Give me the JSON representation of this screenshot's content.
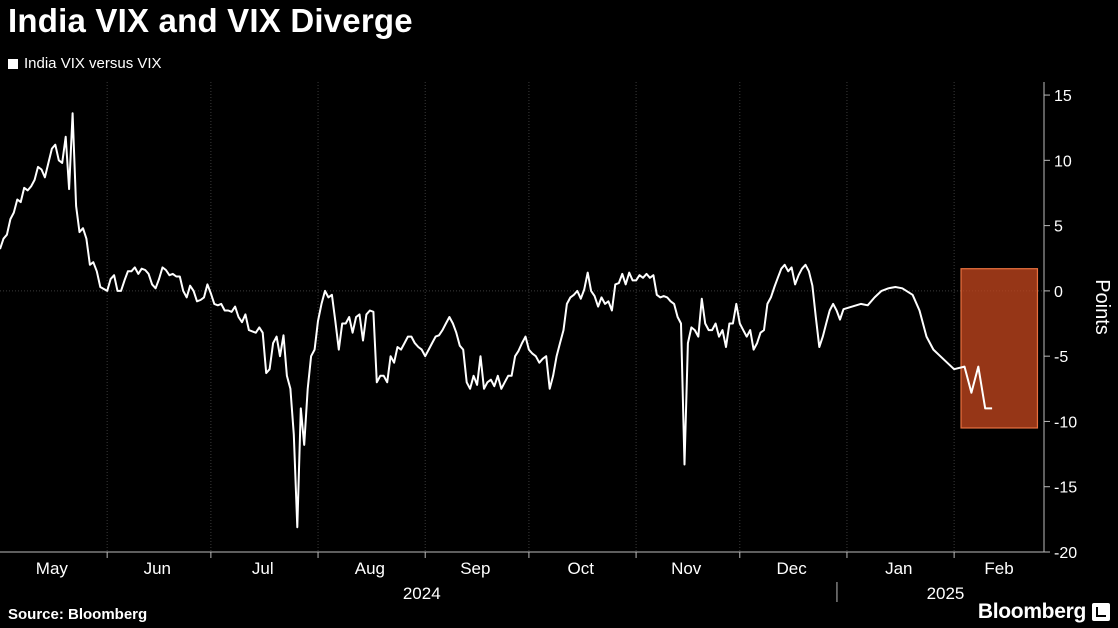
{
  "chart_data": {
    "type": "line",
    "title": "India VIX and VIX Diverge",
    "legend": "top-left",
    "ylabel": "Points",
    "ylim": [
      -20,
      16
    ],
    "yticks": [
      15,
      10,
      5,
      0,
      -5,
      -10,
      -15,
      -20
    ],
    "xlim": [
      "2024-05-01",
      "2025-02-27"
    ],
    "months": [
      {
        "label": "May",
        "start": "2024-05-01",
        "end": "2024-05-31"
      },
      {
        "label": "Jun",
        "start": "2024-06-01",
        "end": "2024-06-30"
      },
      {
        "label": "Jul",
        "start": "2024-07-01",
        "end": "2024-07-31"
      },
      {
        "label": "Aug",
        "start": "2024-08-01",
        "end": "2024-08-31"
      },
      {
        "label": "Sep",
        "start": "2024-09-01",
        "end": "2024-09-30"
      },
      {
        "label": "Oct",
        "start": "2024-10-01",
        "end": "2024-10-31"
      },
      {
        "label": "Nov",
        "start": "2024-11-01",
        "end": "2024-11-30"
      },
      {
        "label": "Dec",
        "start": "2024-12-01",
        "end": "2024-12-31"
      },
      {
        "label": "Jan",
        "start": "2025-01-01",
        "end": "2025-01-31"
      },
      {
        "label": "Feb",
        "start": "2025-02-01",
        "end": "2025-02-28"
      }
    ],
    "years": [
      {
        "label": "2024",
        "start": "2024-05-01",
        "end": "2024-12-31"
      },
      {
        "label": "2025",
        "start": "2025-01-01",
        "end": "2025-02-27"
      }
    ],
    "highlight": {
      "x": [
        "2025-02-03",
        "2025-02-28"
      ],
      "y": [
        -10.5,
        1.7
      ],
      "color": "#c0451e"
    },
    "series": [
      {
        "name": "India VIX versus VIX",
        "color": "#ffffff",
        "points": [
          [
            "2024-05-01",
            3.2
          ],
          [
            "2024-05-02",
            4.0
          ],
          [
            "2024-05-03",
            4.3
          ],
          [
            "2024-05-04",
            5.5
          ],
          [
            "2024-05-05",
            6.0
          ],
          [
            "2024-05-06",
            7.0
          ],
          [
            "2024-05-07",
            6.8
          ],
          [
            "2024-05-08",
            7.9
          ],
          [
            "2024-05-09",
            7.7
          ],
          [
            "2024-05-10",
            8.0
          ],
          [
            "2024-05-11",
            8.5
          ],
          [
            "2024-05-12",
            9.5
          ],
          [
            "2024-05-13",
            9.3
          ],
          [
            "2024-05-14",
            8.7
          ],
          [
            "2024-05-15",
            9.8
          ],
          [
            "2024-05-16",
            10.9
          ],
          [
            "2024-05-17",
            11.2
          ],
          [
            "2024-05-18",
            10.0
          ],
          [
            "2024-05-19",
            9.8
          ],
          [
            "2024-05-20",
            11.8
          ],
          [
            "2024-05-21",
            7.8
          ],
          [
            "2024-05-22",
            13.6
          ],
          [
            "2024-05-23",
            6.5
          ],
          [
            "2024-05-24",
            4.5
          ],
          [
            "2024-05-25",
            4.8
          ],
          [
            "2024-05-26",
            4.0
          ],
          [
            "2024-05-27",
            2.0
          ],
          [
            "2024-05-28",
            2.2
          ],
          [
            "2024-05-29",
            1.5
          ],
          [
            "2024-05-30",
            0.3
          ],
          [
            "2024-06-01",
            0.0
          ],
          [
            "2024-06-02",
            0.9
          ],
          [
            "2024-06-03",
            1.2
          ],
          [
            "2024-06-04",
            0.0
          ],
          [
            "2024-06-05",
            0.0
          ],
          [
            "2024-06-06",
            0.8
          ],
          [
            "2024-06-07",
            1.5
          ],
          [
            "2024-06-08",
            1.5
          ],
          [
            "2024-06-09",
            1.8
          ],
          [
            "2024-06-10",
            1.3
          ],
          [
            "2024-06-11",
            1.7
          ],
          [
            "2024-06-12",
            1.6
          ],
          [
            "2024-06-13",
            1.3
          ],
          [
            "2024-06-14",
            0.5
          ],
          [
            "2024-06-15",
            0.2
          ],
          [
            "2024-06-16",
            0.9
          ],
          [
            "2024-06-17",
            1.8
          ],
          [
            "2024-06-18",
            1.6
          ],
          [
            "2024-06-19",
            1.2
          ],
          [
            "2024-06-20",
            1.3
          ],
          [
            "2024-06-21",
            1.1
          ],
          [
            "2024-06-22",
            1.1
          ],
          [
            "2024-06-23",
            0.0
          ],
          [
            "2024-06-24",
            -0.5
          ],
          [
            "2024-06-25",
            0.4
          ],
          [
            "2024-06-26",
            0.0
          ],
          [
            "2024-06-27",
            -0.8
          ],
          [
            "2024-06-28",
            -0.7
          ],
          [
            "2024-06-29",
            -0.5
          ],
          [
            "2024-06-30",
            0.5
          ],
          [
            "2024-07-01",
            -0.2
          ],
          [
            "2024-07-02",
            -1.0
          ],
          [
            "2024-07-03",
            -1.1
          ],
          [
            "2024-07-04",
            -1.0
          ],
          [
            "2024-07-05",
            -1.5
          ],
          [
            "2024-07-06",
            -1.5
          ],
          [
            "2024-07-07",
            -1.6
          ],
          [
            "2024-07-08",
            -1.2
          ],
          [
            "2024-07-09",
            -2.0
          ],
          [
            "2024-07-10",
            -2.4
          ],
          [
            "2024-07-11",
            -1.8
          ],
          [
            "2024-07-12",
            -3.0
          ],
          [
            "2024-07-13",
            -3.1
          ],
          [
            "2024-07-14",
            -3.2
          ],
          [
            "2024-07-15",
            -2.8
          ],
          [
            "2024-07-16",
            -3.2
          ],
          [
            "2024-07-17",
            -6.3
          ],
          [
            "2024-07-18",
            -6.0
          ],
          [
            "2024-07-19",
            -4.0
          ],
          [
            "2024-07-20",
            -3.5
          ],
          [
            "2024-07-21",
            -5.0
          ],
          [
            "2024-07-22",
            -3.4
          ],
          [
            "2024-07-23",
            -6.5
          ],
          [
            "2024-07-24",
            -7.5
          ],
          [
            "2024-07-25",
            -11.0
          ],
          [
            "2024-07-26",
            -18.1
          ],
          [
            "2024-07-27",
            -9.0
          ],
          [
            "2024-07-28",
            -11.8
          ],
          [
            "2024-07-29",
            -7.5
          ],
          [
            "2024-07-30",
            -5.0
          ],
          [
            "2024-07-31",
            -4.5
          ],
          [
            "2024-08-01",
            -2.3
          ],
          [
            "2024-08-02",
            -1.0
          ],
          [
            "2024-08-03",
            0.0
          ],
          [
            "2024-08-04",
            -0.5
          ],
          [
            "2024-08-05",
            -0.3
          ],
          [
            "2024-08-06",
            -2.3
          ],
          [
            "2024-08-07",
            -4.5
          ],
          [
            "2024-08-08",
            -2.5
          ],
          [
            "2024-08-09",
            -2.5
          ],
          [
            "2024-08-10",
            -2.0
          ],
          [
            "2024-08-11",
            -3.2
          ],
          [
            "2024-08-12",
            -2.0
          ],
          [
            "2024-08-13",
            -1.8
          ],
          [
            "2024-08-14",
            -3.8
          ],
          [
            "2024-08-15",
            -1.8
          ],
          [
            "2024-08-16",
            -1.5
          ],
          [
            "2024-08-17",
            -1.6
          ],
          [
            "2024-08-18",
            -7.0
          ],
          [
            "2024-08-19",
            -6.5
          ],
          [
            "2024-08-20",
            -6.5
          ],
          [
            "2024-08-21",
            -7.0
          ],
          [
            "2024-08-22",
            -5.0
          ],
          [
            "2024-08-23",
            -5.5
          ],
          [
            "2024-08-24",
            -4.3
          ],
          [
            "2024-08-25",
            -4.5
          ],
          [
            "2024-08-26",
            -4.0
          ],
          [
            "2024-08-27",
            -3.5
          ],
          [
            "2024-08-28",
            -3.5
          ],
          [
            "2024-08-29",
            -4.0
          ],
          [
            "2024-08-30",
            -4.3
          ],
          [
            "2024-08-31",
            -4.5
          ],
          [
            "2024-09-01",
            -5.0
          ],
          [
            "2024-09-02",
            -4.5
          ],
          [
            "2024-09-03",
            -4.0
          ],
          [
            "2024-09-04",
            -3.5
          ],
          [
            "2024-09-05",
            -3.4
          ],
          [
            "2024-09-06",
            -3.0
          ],
          [
            "2024-09-07",
            -2.5
          ],
          [
            "2024-09-08",
            -2.0
          ],
          [
            "2024-09-09",
            -2.5
          ],
          [
            "2024-09-10",
            -3.2
          ],
          [
            "2024-09-11",
            -4.2
          ],
          [
            "2024-09-12",
            -4.5
          ],
          [
            "2024-09-13",
            -7.0
          ],
          [
            "2024-09-14",
            -7.5
          ],
          [
            "2024-09-15",
            -6.5
          ],
          [
            "2024-09-16",
            -7.2
          ],
          [
            "2024-09-17",
            -5.0
          ],
          [
            "2024-09-18",
            -7.5
          ],
          [
            "2024-09-19",
            -7.0
          ],
          [
            "2024-09-20",
            -6.8
          ],
          [
            "2024-09-21",
            -7.3
          ],
          [
            "2024-09-22",
            -6.5
          ],
          [
            "2024-09-23",
            -7.5
          ],
          [
            "2024-09-24",
            -7.0
          ],
          [
            "2024-09-25",
            -6.5
          ],
          [
            "2024-09-26",
            -6.5
          ],
          [
            "2024-09-27",
            -5.0
          ],
          [
            "2024-09-28",
            -4.6
          ],
          [
            "2024-09-29",
            -4.0
          ],
          [
            "2024-09-30",
            -3.5
          ],
          [
            "2024-10-01",
            -4.5
          ],
          [
            "2024-10-02",
            -4.8
          ],
          [
            "2024-10-03",
            -5.0
          ],
          [
            "2024-10-04",
            -5.5
          ],
          [
            "2024-10-05",
            -5.2
          ],
          [
            "2024-10-06",
            -5.0
          ],
          [
            "2024-10-07",
            -7.5
          ],
          [
            "2024-10-08",
            -6.5
          ],
          [
            "2024-10-09",
            -5.0
          ],
          [
            "2024-10-10",
            -4.0
          ],
          [
            "2024-10-11",
            -3.0
          ],
          [
            "2024-10-12",
            -1.0
          ],
          [
            "2024-10-13",
            -0.5
          ],
          [
            "2024-10-14",
            -0.3
          ],
          [
            "2024-10-15",
            0.0
          ],
          [
            "2024-10-16",
            -0.6
          ],
          [
            "2024-10-17",
            0.1
          ],
          [
            "2024-10-18",
            1.4
          ],
          [
            "2024-10-19",
            0.0
          ],
          [
            "2024-10-20",
            -0.4
          ],
          [
            "2024-10-21",
            -1.2
          ],
          [
            "2024-10-22",
            -0.5
          ],
          [
            "2024-10-23",
            -1.0
          ],
          [
            "2024-10-24",
            -0.8
          ],
          [
            "2024-10-25",
            -1.5
          ],
          [
            "2024-10-26",
            0.5
          ],
          [
            "2024-10-27",
            0.6
          ],
          [
            "2024-10-28",
            1.3
          ],
          [
            "2024-10-29",
            0.5
          ],
          [
            "2024-10-30",
            1.4
          ],
          [
            "2024-10-31",
            0.8
          ],
          [
            "2024-11-01",
            0.8
          ],
          [
            "2024-11-02",
            1.2
          ],
          [
            "2024-11-03",
            1.0
          ],
          [
            "2024-11-04",
            1.3
          ],
          [
            "2024-11-05",
            1.0
          ],
          [
            "2024-11-06",
            1.2
          ],
          [
            "2024-11-07",
            -0.3
          ],
          [
            "2024-11-08",
            -0.5
          ],
          [
            "2024-11-09",
            -0.4
          ],
          [
            "2024-11-10",
            -0.5
          ],
          [
            "2024-11-11",
            -0.8
          ],
          [
            "2024-11-12",
            -1.0
          ],
          [
            "2024-11-13",
            -2.0
          ],
          [
            "2024-11-14",
            -2.5
          ],
          [
            "2024-11-15",
            -13.3
          ],
          [
            "2024-11-16",
            -4.0
          ],
          [
            "2024-11-17",
            -2.8
          ],
          [
            "2024-11-18",
            -3.0
          ],
          [
            "2024-11-19",
            -3.5
          ],
          [
            "2024-11-20",
            -0.6
          ],
          [
            "2024-11-21",
            -2.5
          ],
          [
            "2024-11-22",
            -3.0
          ],
          [
            "2024-11-23",
            -3.0
          ],
          [
            "2024-11-24",
            -2.5
          ],
          [
            "2024-11-25",
            -3.5
          ],
          [
            "2024-11-26",
            -3.0
          ],
          [
            "2024-11-27",
            -4.3
          ],
          [
            "2024-11-28",
            -2.5
          ],
          [
            "2024-11-29",
            -2.5
          ],
          [
            "2024-11-30",
            -1.0
          ],
          [
            "2024-12-01",
            -2.5
          ],
          [
            "2024-12-02",
            -3.0
          ],
          [
            "2024-12-03",
            -3.5
          ],
          [
            "2024-12-04",
            -3.0
          ],
          [
            "2024-12-05",
            -4.5
          ],
          [
            "2024-12-06",
            -4.0
          ],
          [
            "2024-12-07",
            -3.2
          ],
          [
            "2024-12-08",
            -3.0
          ],
          [
            "2024-12-09",
            -1.0
          ],
          [
            "2024-12-10",
            -0.5
          ],
          [
            "2024-12-11",
            0.3
          ],
          [
            "2024-12-12",
            1.0
          ],
          [
            "2024-12-13",
            1.7
          ],
          [
            "2024-12-14",
            2.0
          ],
          [
            "2024-12-15",
            1.5
          ],
          [
            "2024-12-16",
            1.8
          ],
          [
            "2024-12-17",
            0.5
          ],
          [
            "2024-12-18",
            1.2
          ],
          [
            "2024-12-19",
            1.7
          ],
          [
            "2024-12-20",
            2.0
          ],
          [
            "2024-12-21",
            1.5
          ],
          [
            "2024-12-22",
            0.4
          ],
          [
            "2024-12-23",
            -2.0
          ],
          [
            "2024-12-24",
            -4.3
          ],
          [
            "2024-12-25",
            -3.5
          ],
          [
            "2024-12-26",
            -2.5
          ],
          [
            "2024-12-27",
            -1.5
          ],
          [
            "2024-12-28",
            -1.0
          ],
          [
            "2024-12-29",
            -1.5
          ],
          [
            "2024-12-30",
            -2.2
          ],
          [
            "2024-12-31",
            -1.4
          ],
          [
            "2025-01-01",
            -1.0
          ],
          [
            "2025-01-02",
            -1.1
          ],
          [
            "2025-01-03",
            -0.5
          ],
          [
            "2025-01-04",
            0.0
          ],
          [
            "2025-01-05",
            0.2
          ],
          [
            "2025-01-06",
            0.3
          ],
          [
            "2025-01-07",
            0.2
          ],
          [
            "2025-01-08",
            -0.3
          ],
          [
            "2025-01-09",
            -1.5
          ],
          [
            "2025-01-10",
            -3.5
          ],
          [
            "2025-01-11",
            -4.5
          ],
          [
            "2025-01-12",
            -5.0
          ],
          [
            "2025-01-13",
            -5.5
          ],
          [
            "2025-01-14",
            -6.0
          ],
          [
            "2025-01-15",
            -5.8
          ],
          [
            "2025-01-16",
            -7.8
          ],
          [
            "2025-01-17",
            -5.8
          ],
          [
            "2025-01-18",
            -9.0
          ],
          [
            "2025-01-19",
            -9.0
          ]
        ]
      }
    ]
  },
  "source": "Source: Bloomberg",
  "brand": "Bloomberg"
}
